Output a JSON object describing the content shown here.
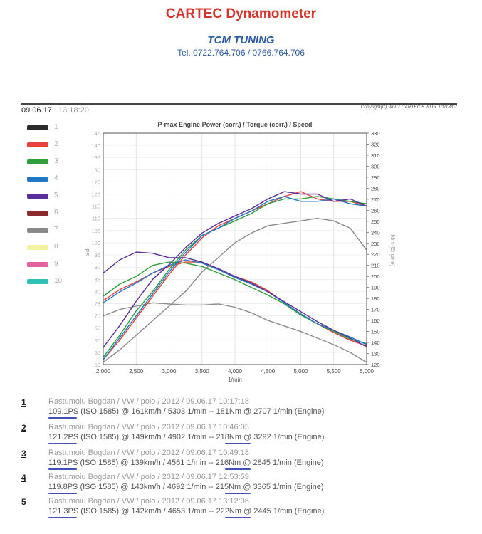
{
  "header": {
    "title": "CARTEC Dynamometer",
    "company": "TCM TUNING",
    "phone": "Tel. 0722.764.706 / 0766.764.706"
  },
  "meta": {
    "date": "09.06.17",
    "time": "13:18:20",
    "copyright": "Copyright(C) 98-07 CARTEC 5.20 IR. 01/18/07"
  },
  "colors": {
    "run1": "#2b2b2b",
    "run2": "#e8403a",
    "run3": "#2f9e3c",
    "run4": "#1f78c9",
    "run5": "#5a2d9c",
    "run6": "#8b2a2a",
    "run7": "#8a8a8a",
    "run8": "#f2f2a0",
    "run9": "#e85fa0",
    "run10": "#2fc0b8"
  },
  "legend": [
    "1",
    "2",
    "3",
    "4",
    "5",
    "6",
    "7",
    "8",
    "9",
    "10"
  ],
  "runs": [
    {
      "index": "1",
      "line1": "Rastumoiu Bogdan / VW / polo / 2012 / 09.06.17 10:17:18",
      "line2": "109.1PS (ISO 1585) @ 161km/h / 5303 1/min -- 181Nm @ 2707 1/min (Engine)"
    },
    {
      "index": "2",
      "line1": "Rastumoiu Bogdan / VW / polo / 2012 / 09.06.17 10:46:05",
      "line2": "121.2PS (ISO 1585) @ 149km/h / 4902 1/min -- 218Nm @ 3292 1/min (Engine)"
    },
    {
      "index": "3",
      "line1": "Rastumoiu Bogdan / VW / polo / 2012 / 09.06.17 10:49:18",
      "line2": "119.1PS (ISO 1585) @ 139km/h / 4561 1/min -- 216Nm @ 2845 1/min (Engine)"
    },
    {
      "index": "4",
      "line1": "Rastumoiu Bogdan / VW / polo / 2012 / 09.06.17 12:53:59",
      "line2": "119.8PS (ISO 1585) @ 143km/h / 4692 1/min -- 215Nm @ 3365 1/min (Engine)"
    },
    {
      "index": "5",
      "line1": "Rastumoiu Bogdan / VW / polo / 2012 / 09.06.17 13:12:06",
      "line2": "121.3PS (ISO 1585) @ 142km/h / 4653 1/min -- 222Nm @ 2445 1/min (Engine)"
    }
  ],
  "chart_data": {
    "type": "line",
    "title": "P-max Engine Power (corr.) / Torque (corr.) / Speed",
    "xlabel": "1/min",
    "ylabel_left": "PS",
    "ylabel_right": "Nm (Engine)",
    "xlim": [
      2000,
      6000
    ],
    "ylim_left": [
      50,
      145
    ],
    "ylim_right": [
      120,
      330
    ],
    "x_ticks": [
      "2,000",
      "2,500",
      "3,000",
      "3,500",
      "4,000",
      "4,500",
      "5,000",
      "5,500",
      "6,000"
    ],
    "left_ticks": [
      "50",
      "55",
      "60",
      "65",
      "70",
      "75",
      "80",
      "85",
      "90",
      "95",
      "100",
      "105",
      "110",
      "115",
      "120",
      "125",
      "130",
      "135",
      "140",
      "145"
    ],
    "right_ticks": [
      "120",
      "130",
      "140",
      "150",
      "160",
      "170",
      "180",
      "190",
      "200",
      "210",
      "220",
      "230",
      "240",
      "250",
      "260",
      "270",
      "280",
      "290",
      "300",
      "310",
      "320",
      "330"
    ],
    "x": [
      2000,
      2250,
      2500,
      2750,
      3000,
      3250,
      3500,
      3750,
      4000,
      4250,
      4500,
      4750,
      5000,
      5250,
      5500,
      5750,
      6000
    ],
    "power_series": [
      {
        "name": "1",
        "axis": "left",
        "color": "#2b2b2b",
        "values": [
          null,
          null,
          null,
          null,
          null,
          null,
          null,
          null,
          null,
          null,
          null,
          null,
          null,
          null,
          null,
          null,
          null
        ]
      },
      {
        "name": "2",
        "axis": "left",
        "color": "#e8403a",
        "values": [
          52,
          60,
          69,
          78,
          87,
          95,
          102,
          107,
          110,
          113,
          116,
          119,
          121,
          118,
          117,
          117,
          115
        ]
      },
      {
        "name": "3",
        "axis": "left",
        "color": "#2f9e3c",
        "values": [
          53,
          62,
          72,
          80,
          89,
          97,
          103,
          106,
          109,
          112,
          116,
          118,
          118,
          119,
          118,
          117,
          116
        ]
      },
      {
        "name": "4",
        "axis": "left",
        "color": "#1f78c9",
        "values": [
          52,
          61,
          70,
          79,
          88,
          96,
          103,
          106,
          110,
          113,
          117,
          119,
          117,
          117,
          118,
          116,
          115
        ]
      },
      {
        "name": "5",
        "axis": "left",
        "color": "#5a2d9c",
        "values": [
          57,
          66,
          76,
          85,
          91,
          98,
          104,
          108,
          111,
          114,
          118,
          121,
          120,
          120,
          117,
          118,
          115
        ]
      },
      {
        "name": "7",
        "axis": "left",
        "color": "#8a8a8a",
        "values": [
          51,
          56,
          62,
          68,
          74,
          80,
          88,
          94,
          100,
          104,
          107,
          108,
          109,
          110,
          109,
          106,
          97
        ]
      }
    ],
    "torque_series": [
      {
        "name": "2",
        "axis": "right",
        "color": "#e8403a",
        "values": [
          178,
          188,
          195,
          203,
          209,
          213,
          213,
          207,
          200,
          195,
          187,
          176,
          166,
          157,
          149,
          142,
          137
        ]
      },
      {
        "name": "3",
        "axis": "right",
        "color": "#2f9e3c",
        "values": [
          182,
          193,
          200,
          210,
          213,
          212,
          209,
          203,
          197,
          190,
          183,
          175,
          165,
          157,
          150,
          143,
          139
        ]
      },
      {
        "name": "4",
        "axis": "right",
        "color": "#1f78c9",
        "values": [
          176,
          186,
          194,
          203,
          210,
          215,
          212,
          206,
          199,
          193,
          186,
          176,
          166,
          157,
          151,
          145,
          138
        ]
      },
      {
        "name": "5",
        "axis": "right",
        "color": "#5a2d9c",
        "values": [
          203,
          215,
          222,
          221,
          217,
          217,
          213,
          207,
          200,
          194,
          186,
          177,
          168,
          159,
          151,
          144,
          136
        ]
      },
      {
        "name": "7",
        "axis": "right",
        "color": "#8a8a8a",
        "values": [
          164,
          170,
          173,
          176,
          175,
          174,
          174,
          175,
          172,
          167,
          160,
          155,
          150,
          144,
          138,
          131,
          122
        ]
      }
    ]
  }
}
